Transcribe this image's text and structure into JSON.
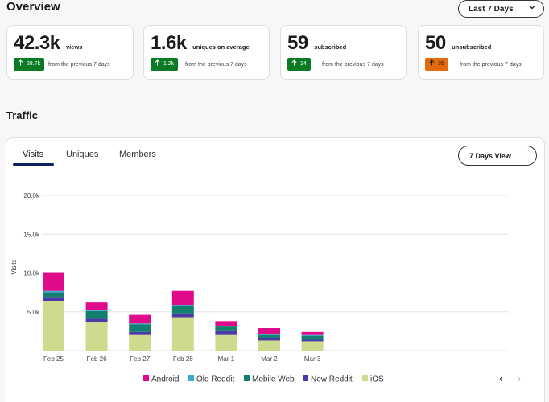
{
  "overview": {
    "title": "Overview",
    "range_selected": "Last 7 Days",
    "stats": [
      {
        "value": "42.3k",
        "unit": "views",
        "badge": "28.7k",
        "trend": "up",
        "badge_color": "#0b7a24",
        "comparison": "from the previous 7 days"
      },
      {
        "value": "1.6k",
        "unit": "uniques on average",
        "badge": "1.2k",
        "trend": "up",
        "badge_color": "#0b7a24",
        "comparison": "from the previous 7 days"
      },
      {
        "value": "59",
        "unit": "subscribed",
        "badge": "14",
        "trend": "up",
        "badge_color": "#0b7a24",
        "comparison": "from the previous 7 days"
      },
      {
        "value": "50",
        "unit": "unsubscribed",
        "badge": "35",
        "trend": "up",
        "badge_color": "#e4690c",
        "comparison": "from the previous 7 days"
      }
    ]
  },
  "traffic": {
    "title": "Traffic",
    "tabs": [
      {
        "label": "Visits",
        "active": true
      },
      {
        "label": "Uniques",
        "active": false
      },
      {
        "label": "Members",
        "active": false
      }
    ],
    "view_button": "7 Days View",
    "pager": {
      "prev": "‹",
      "next": "›"
    }
  },
  "chart_data": {
    "type": "bar",
    "stacked": true,
    "title": "",
    "xlabel": "",
    "ylabel": "Visits",
    "ylim": [
      0,
      20000
    ],
    "yticks": [
      5000,
      10000,
      15000,
      20000
    ],
    "ytick_labels": [
      "5.0k",
      "10.0k",
      "15.0k",
      "20.0k"
    ],
    "grid": true,
    "legend_position": "bottom",
    "categories": [
      "Feb 25",
      "Feb 26",
      "Feb 27",
      "Feb 28",
      "Mar 1",
      "Mar 2",
      "Mar 3"
    ],
    "series": [
      {
        "name": "iOS",
        "color": "#ccdb8d",
        "values": [
          6400,
          3700,
          2000,
          4300,
          2000,
          1300,
          1200
        ]
      },
      {
        "name": "New Reddit",
        "color": "#4b3aa8",
        "values": [
          400,
          400,
          400,
          500,
          500,
          300,
          200
        ]
      },
      {
        "name": "Mobile Web",
        "color": "#137f6e",
        "values": [
          700,
          1000,
          1000,
          1000,
          600,
          400,
          500
        ]
      },
      {
        "name": "Old Reddit",
        "color": "#3fa6d1",
        "values": [
          200,
          100,
          100,
          100,
          100,
          100,
          100
        ]
      },
      {
        "name": "Android",
        "color": "#e00b8a",
        "values": [
          2400,
          1000,
          1100,
          1800,
          600,
          800,
          400
        ]
      }
    ],
    "legend_order": [
      "Android",
      "Old Reddit",
      "Mobile Web",
      "New Reddit",
      "iOS"
    ]
  }
}
